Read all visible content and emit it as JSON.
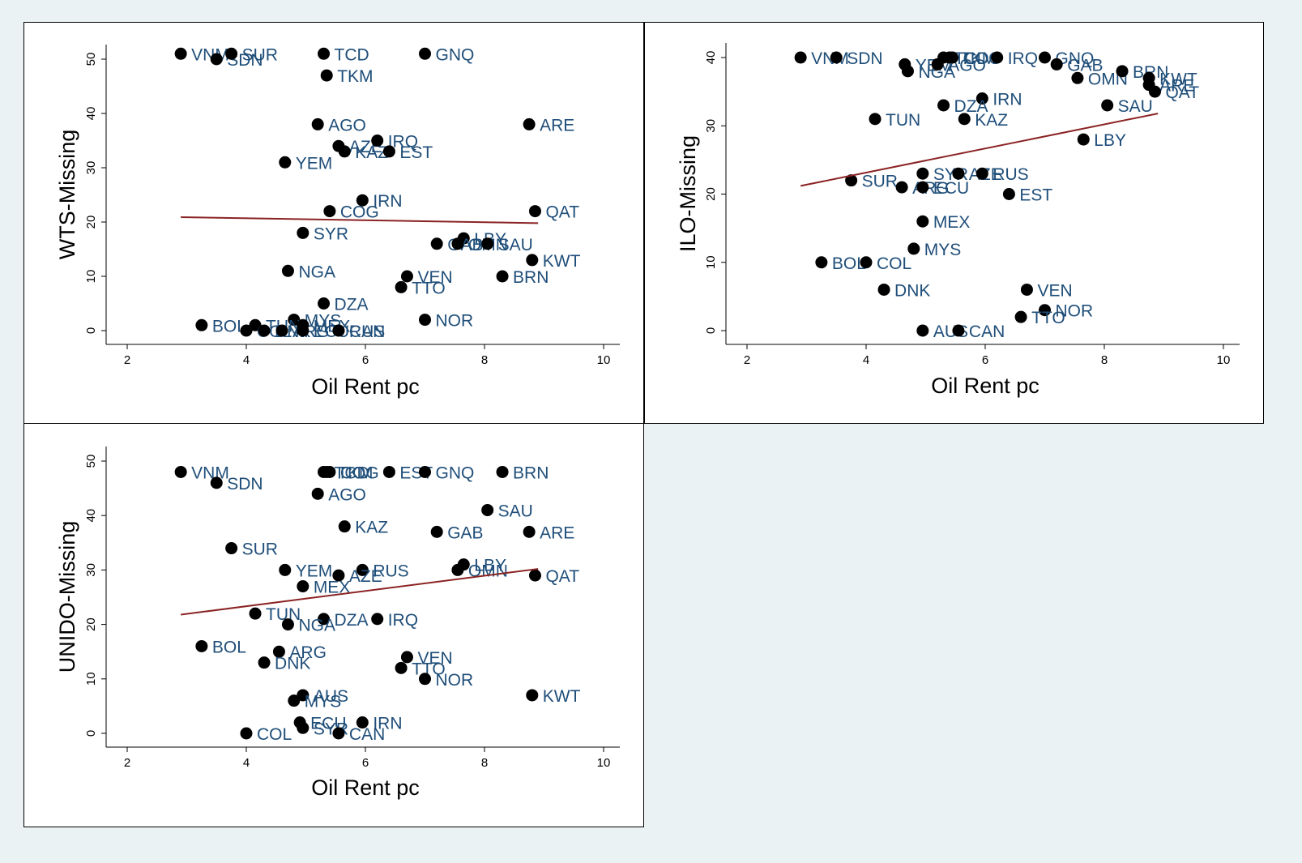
{
  "chart_data": [
    {
      "type": "scatter",
      "xlabel": "Oil Rent pc",
      "ylabel": "WTS-Missing",
      "xlim": [
        2,
        10
      ],
      "ylim": [
        0,
        50
      ],
      "xticks": [
        2,
        4,
        6,
        8,
        10
      ],
      "yticks": [
        0,
        10,
        20,
        30,
        40,
        50
      ],
      "grid": false,
      "fit_line": {
        "x": [
          2.9,
          8.9
        ],
        "y": [
          20.9,
          19.8
        ]
      },
      "points": [
        {
          "label": "VNM",
          "x": 2.9,
          "y": 51
        },
        {
          "label": "SDN",
          "x": 3.5,
          "y": 50
        },
        {
          "label": "SUR",
          "x": 3.75,
          "y": 51
        },
        {
          "label": "TCD",
          "x": 5.3,
          "y": 51
        },
        {
          "label": "GNQ",
          "x": 7.0,
          "y": 51
        },
        {
          "label": "TKM",
          "x": 5.35,
          "y": 47
        },
        {
          "label": "AGO",
          "x": 5.2,
          "y": 38
        },
        {
          "label": "ARE",
          "x": 8.75,
          "y": 38
        },
        {
          "label": "AZE",
          "x": 5.55,
          "y": 34
        },
        {
          "label": "IRQ",
          "x": 6.2,
          "y": 35
        },
        {
          "label": "KAZ",
          "x": 5.65,
          "y": 33
        },
        {
          "label": "EST",
          "x": 6.4,
          "y": 33
        },
        {
          "label": "YEM",
          "x": 4.65,
          "y": 31
        },
        {
          "label": "IRN",
          "x": 5.95,
          "y": 24
        },
        {
          "label": "COG",
          "x": 5.4,
          "y": 22
        },
        {
          "label": "QAT",
          "x": 8.85,
          "y": 22
        },
        {
          "label": "SYR",
          "x": 4.95,
          "y": 18
        },
        {
          "label": "LBY",
          "x": 7.65,
          "y": 17
        },
        {
          "label": "GAB",
          "x": 7.2,
          "y": 16
        },
        {
          "label": "OMN",
          "x": 7.55,
          "y": 16
        },
        {
          "label": "SAU",
          "x": 8.05,
          "y": 16
        },
        {
          "label": "KWT",
          "x": 8.8,
          "y": 13
        },
        {
          "label": "NGA",
          "x": 4.7,
          "y": 11
        },
        {
          "label": "VEN",
          "x": 6.7,
          "y": 10
        },
        {
          "label": "BRN",
          "x": 8.3,
          "y": 10
        },
        {
          "label": "TTO",
          "x": 6.6,
          "y": 8
        },
        {
          "label": "DZA",
          "x": 5.3,
          "y": 5
        },
        {
          "label": "MYS",
          "x": 4.8,
          "y": 2
        },
        {
          "label": "NOR",
          "x": 7.0,
          "y": 2
        },
        {
          "label": "BOL",
          "x": 3.25,
          "y": 1
        },
        {
          "label": "TUN",
          "x": 4.15,
          "y": 1
        },
        {
          "label": "COL",
          "x": 4.0,
          "y": 0
        },
        {
          "label": "DNK",
          "x": 4.3,
          "y": 0
        },
        {
          "label": "ARG",
          "x": 4.6,
          "y": 0
        },
        {
          "label": "ECU",
          "x": 4.95,
          "y": 0
        },
        {
          "label": "RUS",
          "x": 5.55,
          "y": 0
        },
        {
          "label": "MEX",
          "x": 4.95,
          "y": 1
        },
        {
          "label": "CAN",
          "x": 5.55,
          "y": 0
        }
      ]
    },
    {
      "type": "scatter",
      "xlabel": "Oil Rent pc",
      "ylabel": "ILO-Missing",
      "xlim": [
        2,
        10
      ],
      "ylim": [
        0,
        40
      ],
      "xticks": [
        2,
        4,
        6,
        8,
        10
      ],
      "yticks": [
        0,
        10,
        20,
        30,
        40
      ],
      "grid": false,
      "fit_line": {
        "x": [
          2.9,
          8.9
        ],
        "y": [
          21.2,
          31.8
        ]
      },
      "points": [
        {
          "label": "VNM",
          "x": 2.9,
          "y": 40
        },
        {
          "label": "SDN",
          "x": 3.5,
          "y": 40
        },
        {
          "label": "YEM",
          "x": 4.65,
          "y": 39
        },
        {
          "label": "NGA",
          "x": 4.7,
          "y": 38
        },
        {
          "label": "AGO",
          "x": 5.2,
          "y": 39
        },
        {
          "label": "TCD",
          "x": 5.3,
          "y": 40
        },
        {
          "label": "TKM",
          "x": 5.4,
          "y": 40
        },
        {
          "label": "COG",
          "x": 5.45,
          "y": 40
        },
        {
          "label": "IRQ",
          "x": 6.2,
          "y": 40
        },
        {
          "label": "GNQ",
          "x": 7.0,
          "y": 40
        },
        {
          "label": "GAB",
          "x": 7.2,
          "y": 39
        },
        {
          "label": "OMN",
          "x": 7.55,
          "y": 37
        },
        {
          "label": "BRN",
          "x": 8.3,
          "y": 38
        },
        {
          "label": "KWT",
          "x": 8.75,
          "y": 37
        },
        {
          "label": "ARE",
          "x": 8.75,
          "y": 36
        },
        {
          "label": "QAT",
          "x": 8.85,
          "y": 35
        },
        {
          "label": "IRN",
          "x": 5.95,
          "y": 34
        },
        {
          "label": "DZA",
          "x": 5.3,
          "y": 33
        },
        {
          "label": "SAU",
          "x": 8.05,
          "y": 33
        },
        {
          "label": "TUN",
          "x": 4.15,
          "y": 31
        },
        {
          "label": "KAZ",
          "x": 5.65,
          "y": 31
        },
        {
          "label": "LBY",
          "x": 7.65,
          "y": 28
        },
        {
          "label": "SYR",
          "x": 4.95,
          "y": 23
        },
        {
          "label": "AZE",
          "x": 5.55,
          "y": 23
        },
        {
          "label": "RUS",
          "x": 5.95,
          "y": 23
        },
        {
          "label": "SUR",
          "x": 3.75,
          "y": 22
        },
        {
          "label": "ARG",
          "x": 4.6,
          "y": 21
        },
        {
          "label": "ECU",
          "x": 4.95,
          "y": 21
        },
        {
          "label": "EST",
          "x": 6.4,
          "y": 20
        },
        {
          "label": "MEX",
          "x": 4.95,
          "y": 16
        },
        {
          "label": "MYS",
          "x": 4.8,
          "y": 12
        },
        {
          "label": "BOL",
          "x": 3.25,
          "y": 10
        },
        {
          "label": "COL",
          "x": 4.0,
          "y": 10
        },
        {
          "label": "DNK",
          "x": 4.3,
          "y": 6
        },
        {
          "label": "VEN",
          "x": 6.7,
          "y": 6
        },
        {
          "label": "NOR",
          "x": 7.0,
          "y": 3
        },
        {
          "label": "TTO",
          "x": 6.6,
          "y": 2
        },
        {
          "label": "AUS",
          "x": 4.95,
          "y": 0
        },
        {
          "label": "CAN",
          "x": 5.55,
          "y": 0
        }
      ]
    },
    {
      "type": "scatter",
      "xlabel": "Oil Rent pc",
      "ylabel": "UNIDO-Missing",
      "xlim": [
        2,
        10
      ],
      "ylim": [
        0,
        50
      ],
      "xticks": [
        2,
        4,
        6,
        8,
        10
      ],
      "yticks": [
        0,
        10,
        20,
        30,
        40,
        50
      ],
      "grid": false,
      "fit_line": {
        "x": [
          2.9,
          8.9
        ],
        "y": [
          21.8,
          30.2
        ]
      },
      "points": [
        {
          "label": "VNM",
          "x": 2.9,
          "y": 48
        },
        {
          "label": "SDN",
          "x": 3.5,
          "y": 46
        },
        {
          "label": "TCD",
          "x": 5.3,
          "y": 48
        },
        {
          "label": "TKM",
          "x": 5.35,
          "y": 48
        },
        {
          "label": "COG",
          "x": 5.4,
          "y": 48
        },
        {
          "label": "EST",
          "x": 6.4,
          "y": 48
        },
        {
          "label": "GNQ",
          "x": 7.0,
          "y": 48
        },
        {
          "label": "BRN",
          "x": 8.3,
          "y": 48
        },
        {
          "label": "AGO",
          "x": 5.2,
          "y": 44
        },
        {
          "label": "SAU",
          "x": 8.05,
          "y": 41
        },
        {
          "label": "KAZ",
          "x": 5.65,
          "y": 38
        },
        {
          "label": "GAB",
          "x": 7.2,
          "y": 37
        },
        {
          "label": "ARE",
          "x": 8.75,
          "y": 37
        },
        {
          "label": "SUR",
          "x": 3.75,
          "y": 34
        },
        {
          "label": "LBY",
          "x": 7.65,
          "y": 31
        },
        {
          "label": "OMN",
          "x": 7.55,
          "y": 30
        },
        {
          "label": "YEM",
          "x": 4.65,
          "y": 30
        },
        {
          "label": "RUS",
          "x": 5.95,
          "y": 30
        },
        {
          "label": "AZE",
          "x": 5.55,
          "y": 29
        },
        {
          "label": "QAT",
          "x": 8.85,
          "y": 29
        },
        {
          "label": "MEX",
          "x": 4.95,
          "y": 27
        },
        {
          "label": "TUN",
          "x": 4.15,
          "y": 22
        },
        {
          "label": "DZA",
          "x": 5.3,
          "y": 21
        },
        {
          "label": "IRQ",
          "x": 6.2,
          "y": 21
        },
        {
          "label": "NGA",
          "x": 4.7,
          "y": 20
        },
        {
          "label": "BOL",
          "x": 3.25,
          "y": 16
        },
        {
          "label": "ARG",
          "x": 4.55,
          "y": 15
        },
        {
          "label": "VEN",
          "x": 6.7,
          "y": 14
        },
        {
          "label": "DNK",
          "x": 4.3,
          "y": 13
        },
        {
          "label": "TTO",
          "x": 6.6,
          "y": 12
        },
        {
          "label": "NOR",
          "x": 7.0,
          "y": 10
        },
        {
          "label": "AUS",
          "x": 4.95,
          "y": 7
        },
        {
          "label": "MYS",
          "x": 4.8,
          "y": 6
        },
        {
          "label": "KWT",
          "x": 8.8,
          "y": 7
        },
        {
          "label": "ECU",
          "x": 4.9,
          "y": 2
        },
        {
          "label": "IRN",
          "x": 5.95,
          "y": 2
        },
        {
          "label": "SYR",
          "x": 4.95,
          "y": 1
        },
        {
          "label": "CAN",
          "x": 5.55,
          "y": 0
        },
        {
          "label": "COL",
          "x": 4.0,
          "y": 0
        }
      ]
    }
  ]
}
